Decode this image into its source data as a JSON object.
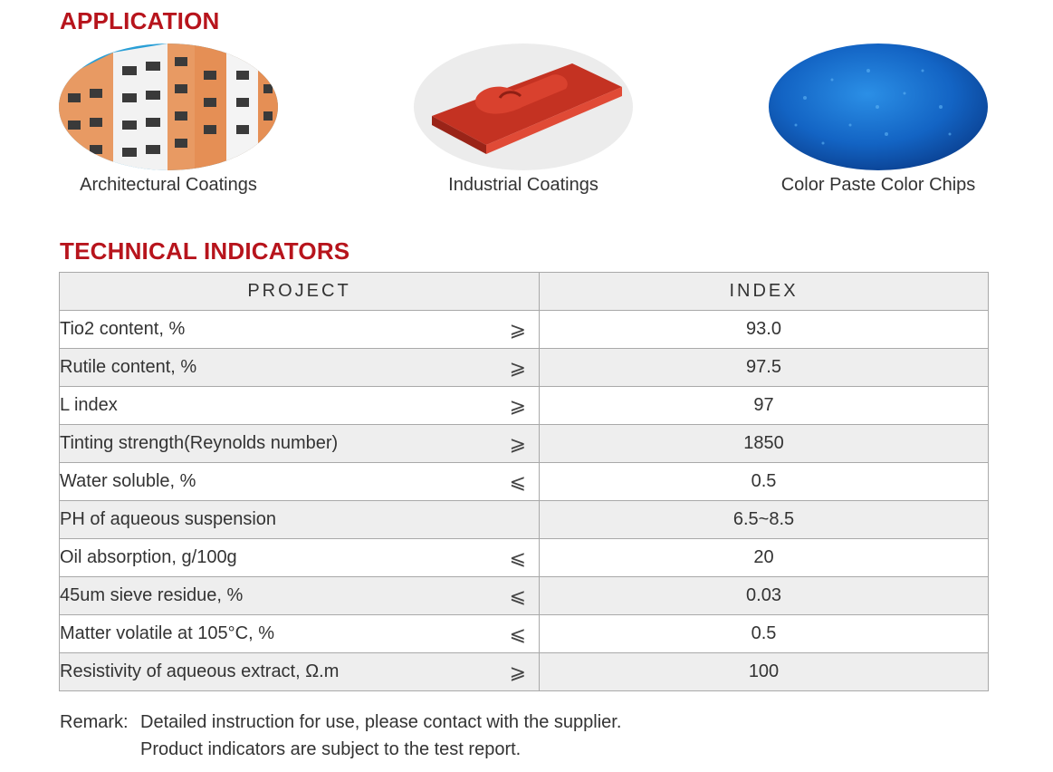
{
  "application": {
    "title": "APPLICATION",
    "items": [
      {
        "label": "Architectural Coatings",
        "icon": "building-facade-photo"
      },
      {
        "label": "Industrial Coatings",
        "icon": "red-profile-photo"
      },
      {
        "label": "Color Paste Color Chips",
        "icon": "blue-pigment-photo"
      }
    ]
  },
  "technical": {
    "title": "TECHNICAL INDICATORS",
    "headers": [
      "PROJECT",
      "INDEX"
    ],
    "rows": [
      {
        "project": "Tio2 content, %",
        "symbol": "⩾",
        "index": "93.0"
      },
      {
        "project": "Rutile content, %",
        "symbol": "⩾",
        "index": "97.5"
      },
      {
        "project": "L index",
        "symbol": "⩾",
        "index": "97"
      },
      {
        "project": "Tinting strength(Reynolds number)",
        "symbol": "⩾",
        "index": "1850"
      },
      {
        "project": "Water soluble, %",
        "symbol": "⩽",
        "index": "0.5"
      },
      {
        "project": "PH of aqueous suspension",
        "symbol": "",
        "index": "6.5~8.5"
      },
      {
        "project": "Oil absorption,  g/100g",
        "symbol": "⩽",
        "index": "20"
      },
      {
        "project": "45um sieve residue, %",
        "symbol": "⩽",
        "index": "0.03"
      },
      {
        "project": "Matter volatile at 105°C, %",
        "symbol": "⩽",
        "index": "0.5"
      },
      {
        "project": "Resistivity of aqueous extract, Ω.m",
        "symbol": "⩾",
        "index": "100"
      }
    ]
  },
  "remark": {
    "label": "Remark:",
    "line1": "Detailed instruction for use, please contact with the supplier.",
    "line2": "Product indicators are subject to the test report."
  },
  "colors": {
    "accent": "#b7141c",
    "row_shade": "#eeeeee",
    "border": "#a9a9a9"
  }
}
